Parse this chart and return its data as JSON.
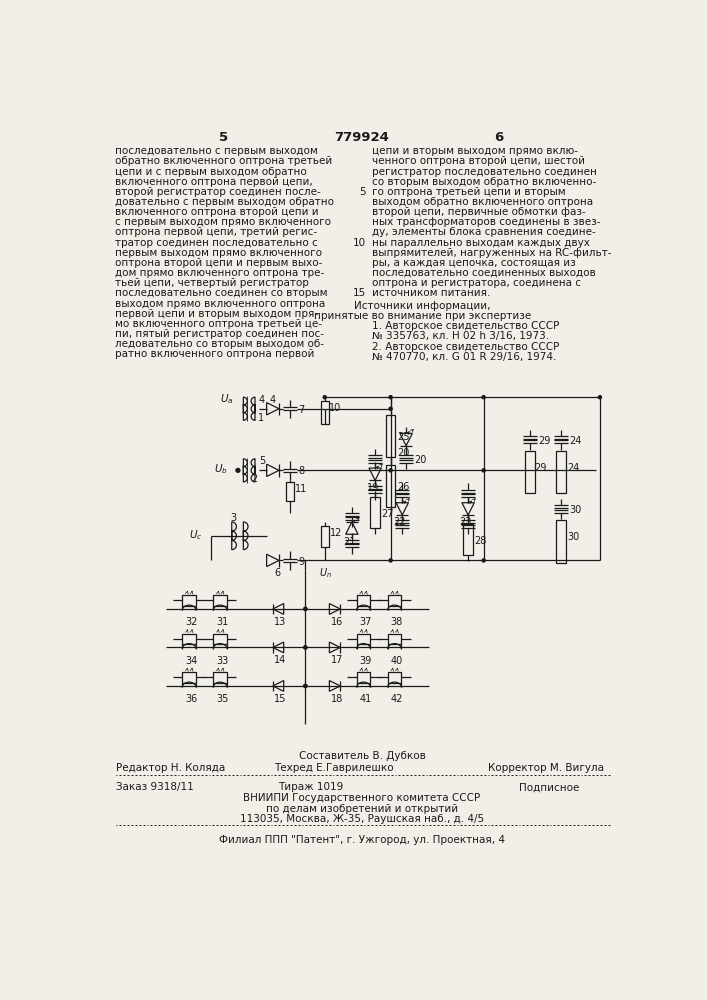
{
  "background_color": "#f2efe9",
  "page_number_left": "5",
  "page_number_center": "779924",
  "page_number_right": "6",
  "left_column_text": [
    "последовательно с первым выходом",
    "обратно включенного оптрона третьей",
    "цепи и с первым выходом обратно",
    "включенного оптрона первой цепи,",
    "второй регистратор соединен после-",
    "довательно с первым выходом обратно",
    "включенного оптрона второй цепи и",
    "с первым выходом прямо включенного",
    "оптрона первой цепи, третий регис-",
    "тратор соединен последовательно с",
    "первым выходом прямо включенного",
    "оптрона второй цепи и первым выхо-",
    "дом прямо включенного оптрона тре-",
    "тьей цепи, четвертый регистратор",
    "последовательно соединен со вторым",
    "выходом прямо включенного оптрона",
    "первой цепи и вторым выходом пря-",
    "мо включенного оптрона третьей це-",
    "пи, пятый регистратор соединен пос-",
    "ледовательно со вторым выходом об-",
    "ратно включенного оптрона первой"
  ],
  "right_column_text": [
    "цепи и вторым выходом прямо вклю-",
    "ченного оптрона второй цепи, шестой",
    "регистратор последовательно соединен",
    "со вторым выходом обратно включенно-",
    "го оптрона третьей цепи и вторым",
    "выходом обратно включенного оптрона",
    "второй цепи, первичные обмотки фаз-",
    "ных трансформаторов соединены в звез-",
    "ду, элементы блока сравнения соедине-",
    "ны параллельно выходам каждых двух",
    "выпрямителей, нагруженных на RC-фильт-",
    "ры, а каждая цепочка, состоящая из",
    "последовательно соединенных выходов",
    "оптрона и регистратора, соединена с",
    "источником питания."
  ],
  "sources_header": "Источники информации,",
  "sources_subheader": "принятые во внимание при экспертизе",
  "source1": "1. Авторское свидетельство СССР",
  "source1b": "№ 335763, кл. Н 02 h 3/16, 1973.",
  "source2": "2. Авторское свидетельство СССР",
  "source2b": "№ 470770, кл. G 01 R 29/16, 1974.",
  "footer_compiler": "Составитель В. Дубков",
  "footer_editor": "Редактор Н. Коляда",
  "footer_techred": "Техред Е.Гаврилешко",
  "footer_corrector": "Корректор М. Вигула",
  "footer_order": "Заказ 9318/11",
  "footer_tirazh": "Тираж 1019",
  "footer_podpisnoe": "Подписное",
  "footer_vniip1": "ВНИИПИ Государственного комитета СССР",
  "footer_vniip2": "по делам изобретений и открытий",
  "footer_vniip3": "113035, Москва, Ж-35, Раушская наб., д. 4/5",
  "footer_filial": "Филиал ППП \"Патент\", г. Ужгород, ул. Проектная, 4"
}
